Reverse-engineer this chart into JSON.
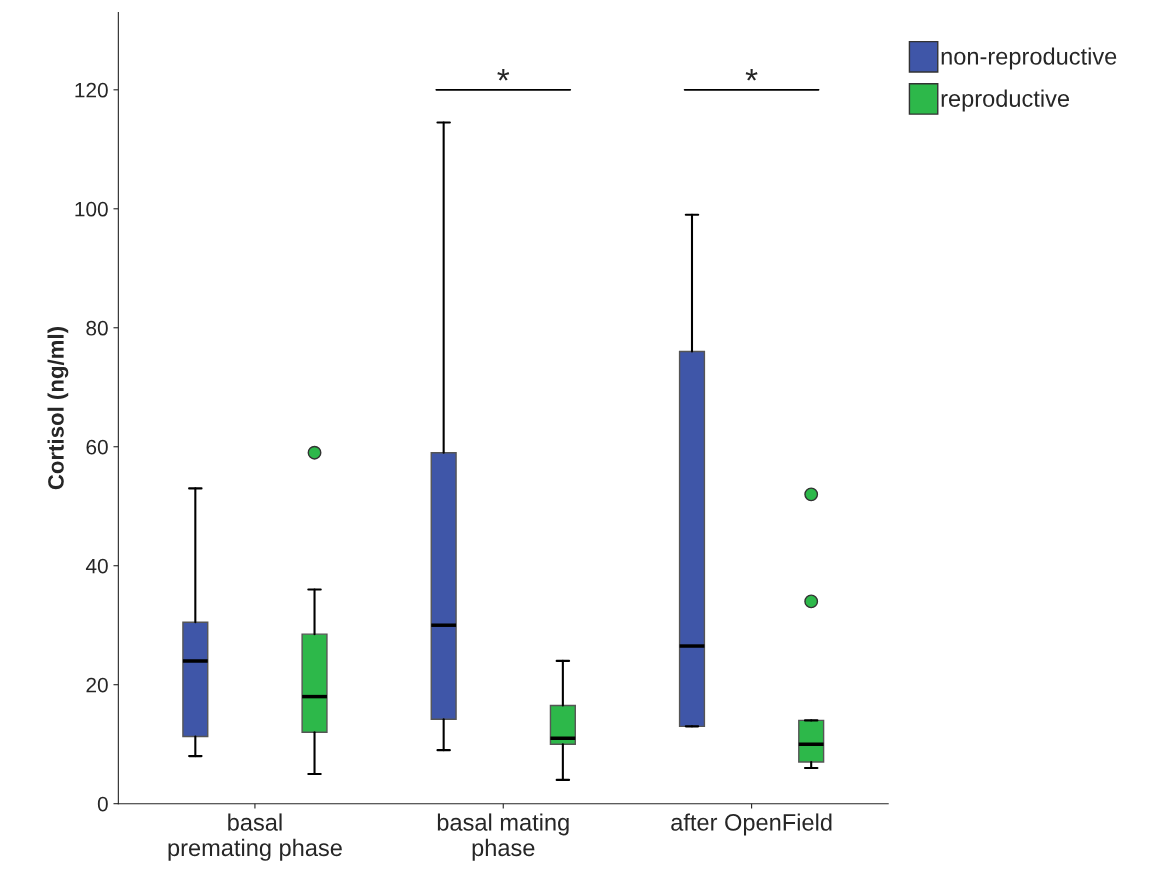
{
  "chart_data": {
    "type": "box",
    "ylabel": "Cortisol (ng/ml)",
    "categories": [
      "basal\npremating phase",
      "basal mating\nphase",
      "after OpenField"
    ],
    "series": [
      {
        "name": "non-reproductive",
        "color": "#3f56a8",
        "boxes": [
          {
            "low": 8,
            "q1": 11.3,
            "median": 24,
            "q3": 30.5,
            "high": 53
          },
          {
            "low": 9,
            "q1": 14.2,
            "median": 30,
            "q3": 59,
            "high": 114.5
          },
          {
            "low": 13,
            "q1": 13,
            "median": 26.5,
            "q3": 76,
            "high": 99
          }
        ]
      },
      {
        "name": "reproductive",
        "color": "#2db84a",
        "boxes": [
          {
            "low": 5,
            "q1": 12,
            "median": 18,
            "q3": 28.5,
            "high": 36,
            "outliers": [
              59
            ]
          },
          {
            "low": 4,
            "q1": 10,
            "median": 11,
            "q3": 16.5,
            "high": 24
          },
          {
            "low": 6,
            "q1": 7,
            "median": 10,
            "q3": 14,
            "high": 14,
            "outliers": [
              52,
              34
            ]
          }
        ]
      }
    ],
    "annotations": [
      "*",
      "*"
    ],
    "ylim": [
      0,
      133
    ],
    "yticks": [
      0,
      20,
      40,
      60,
      80,
      100,
      120
    ],
    "grid": false,
    "legend": "top right"
  }
}
